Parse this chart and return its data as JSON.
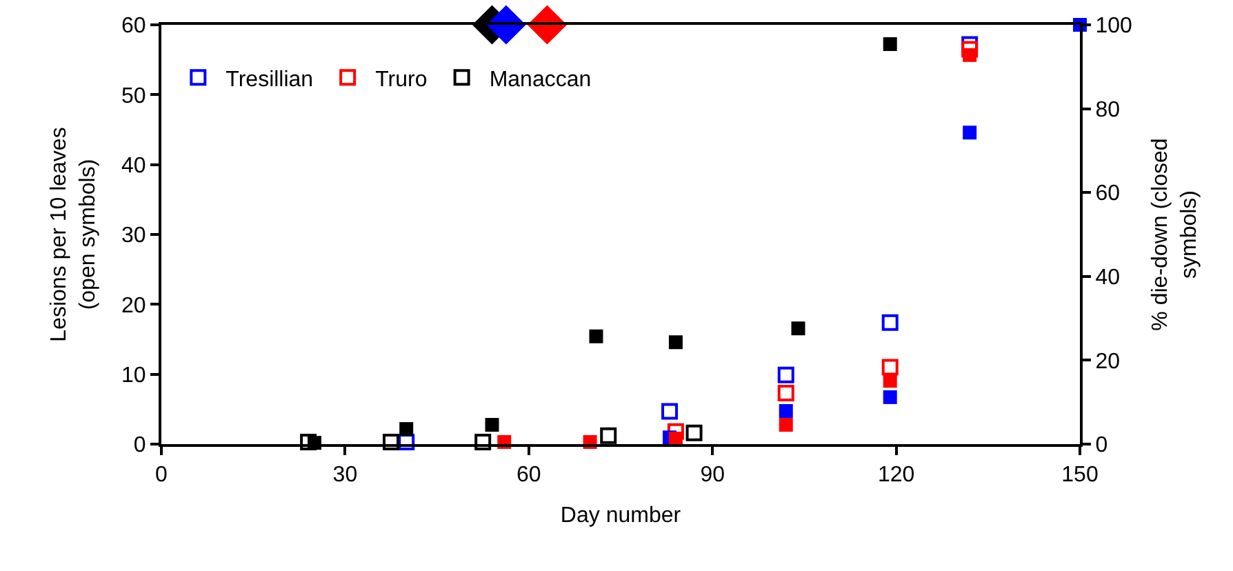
{
  "chart_data": {
    "type": "scatter",
    "xlabel": "Day number",
    "ylabel": "Lesions per 10 leaves\n(open symbols)",
    "y2label": "% die-down (closed\nsymbols)",
    "xlim": [
      0,
      150
    ],
    "xticks": [
      0,
      30,
      60,
      90,
      120,
      150
    ],
    "ylim": [
      0,
      60
    ],
    "yticks": [
      0,
      10,
      20,
      30,
      40,
      50,
      60
    ],
    "y2lim": [
      0,
      100
    ],
    "y2ticks": [
      0,
      20,
      40,
      60,
      80,
      100
    ],
    "legend": "top left",
    "marker": "square",
    "series": [
      {
        "name": "Tresillian",
        "color": "#0000ff",
        "x": [
          40,
          83,
          102,
          119,
          132
        ],
        "values": [
          0.3,
          4.7,
          9.9,
          17.4,
          57.2
        ]
      },
      {
        "name": "Truro",
        "color": "#ff0000",
        "x": [
          84,
          102,
          119,
          132
        ],
        "values": [
          1.8,
          7.3,
          11.0,
          56.5
        ]
      },
      {
        "name": "Manaccan",
        "color": "#000000",
        "x": [
          24,
          37.5,
          52.5,
          73,
          87
        ],
        "values": [
          0.3,
          0.3,
          0.3,
          1.2,
          1.6
        ]
      },
      {
        "color": "#0000ff",
        "axis": "y2",
        "x": [
          83,
          102,
          119,
          132,
          150
        ],
        "values": [
          1.6,
          7.9,
          11.2,
          74.3,
          100
        ]
      },
      {
        "color": "#ff0000",
        "axis": "y2",
        "x": [
          56,
          70,
          84,
          102,
          119,
          132
        ],
        "values": [
          0.5,
          0.5,
          1.3,
          4.6,
          15.1,
          92.8
        ]
      },
      {
        "color": "#000000",
        "axis": "y2",
        "x": [
          25,
          40,
          54,
          71,
          84,
          104,
          119
        ],
        "values": [
          0.3,
          3.6,
          4.6,
          25.7,
          24.3,
          27.6,
          95.4
        ]
      },
      {
        "marker": "diamond",
        "axis": "y2",
        "x": [
          54,
          56.3,
          63
        ],
        "values": [
          100,
          100,
          100
        ],
        "colors": [
          "#000000",
          "#0000ff",
          "#ff0000"
        ]
      }
    ]
  }
}
